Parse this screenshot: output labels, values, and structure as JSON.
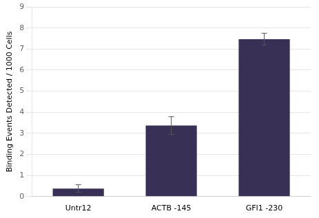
{
  "chart_data": {
    "type": "bar",
    "categories": [
      "Untr12",
      "ACTB -145",
      "GFI1 -230"
    ],
    "values": [
      0.38,
      3.37,
      7.47
    ],
    "errors": [
      0.18,
      0.42,
      0.28
    ],
    "color": "#383055",
    "ylabel": "Binding Events Detected / 1000 Cells",
    "ylim": [
      0,
      9
    ],
    "yticks": [
      0,
      1,
      2,
      3,
      4,
      5,
      6,
      7,
      8,
      9
    ],
    "grid": true
  }
}
